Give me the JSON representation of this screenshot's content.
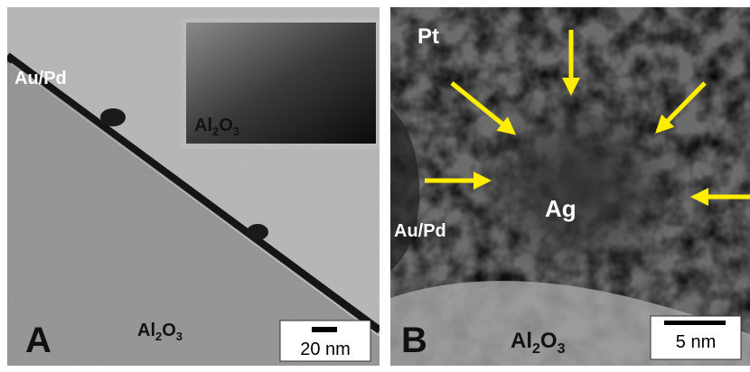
{
  "panel_a": {
    "letter": "A",
    "top_label": "Au/Pd",
    "inset_label": [
      "Al",
      "2",
      "O",
      "3"
    ],
    "bottom_label": [
      "Al",
      "2",
      "O",
      "3"
    ],
    "scale_bar": "20 nm"
  },
  "panel_b": {
    "letter": "B",
    "top_label": "Pt",
    "left_label": "Au/Pd",
    "center_label": "Ag",
    "bottom_label": [
      "Al",
      "2",
      "O",
      "3"
    ],
    "scale_bar": "5 nm"
  }
}
